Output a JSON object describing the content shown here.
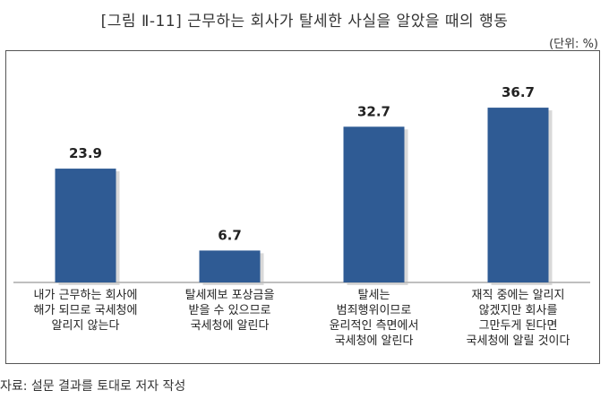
{
  "title": "[그림 Ⅱ-11] 근무하는 회사가 탈세한 사실을 알았을 때의 행동",
  "unit_label": "(단위: %)",
  "source": "자료: 설문 결과를 토대로 저자 작성",
  "colors": {
    "bar": "#2f5b94",
    "axis": "#7f7f7f",
    "shadow": "#b9b9b9"
  },
  "chart_data": {
    "type": "bar",
    "categories": [
      [
        "내가 근무하는 회사에",
        "해가 되므로 국세청에",
        "알리지 않는다"
      ],
      [
        "탈세제보 포상금을",
        "받을 수 있으므로",
        "국세청에 알린다"
      ],
      [
        "탈세는",
        "범죄행위이므로",
        "윤리적인 측면에서",
        "국세청에 알린다"
      ],
      [
        "재직 중에는 알리지",
        "않겠지만 회사를",
        "그만두게 된다면",
        "국세청에 알릴 것이다"
      ]
    ],
    "values": [
      23.9,
      6.7,
      32.7,
      36.7
    ],
    "value_labels": [
      "23.9",
      "6.7",
      "32.7",
      "36.7"
    ],
    "ylim": [
      0,
      45
    ],
    "grid": false,
    "legend": "none"
  }
}
